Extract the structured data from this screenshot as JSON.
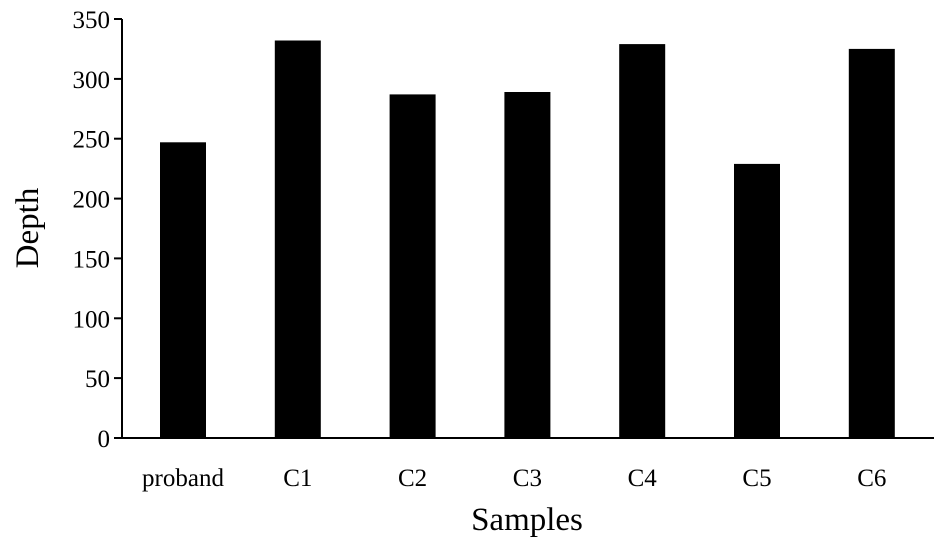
{
  "chart_data": {
    "type": "bar",
    "title": "",
    "xlabel": "Samples",
    "ylabel": "Depth",
    "categories": [
      "proband",
      "C1",
      "C2",
      "C3",
      "C4",
      "C5",
      "C6"
    ],
    "values": [
      247,
      332,
      287,
      289,
      329,
      229,
      325
    ],
    "ylim": [
      0,
      350
    ],
    "yticks": [
      0,
      50,
      100,
      150,
      200,
      250,
      300,
      350
    ],
    "grid": false,
    "legend": "none",
    "bar_color": "#000000"
  }
}
